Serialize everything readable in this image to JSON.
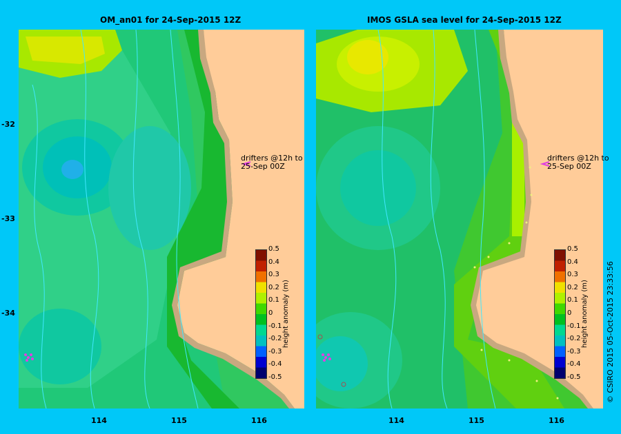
{
  "left_panel": {
    "title": "OM_an01  for 24-Sep-2015 12Z",
    "drifter_label_line1": "drifters @12h to",
    "drifter_label_line2": "25-Sep 00Z"
  },
  "right_panel": {
    "title": "IMOS GSLA sea level  for 24-Sep-2015 12Z",
    "drifter_label_line1": "drifters @12h to",
    "drifter_label_line2": "25-Sep 00Z"
  },
  "axes": {
    "y_ticks": [
      "-32",
      "-33",
      "-34"
    ],
    "x_ticks": [
      "114",
      "115",
      "116"
    ],
    "lat_range": [
      -35.0,
      -31.1
    ],
    "lon_range": [
      113.0,
      116.6
    ]
  },
  "colorbar": {
    "title": "height anomaly (m)",
    "ticks": [
      "0.5",
      "0.4",
      "0.3",
      "0.2",
      "0.1",
      "0",
      "-0.1",
      "-0.2",
      "-0.3",
      "-0.4",
      "-0.5"
    ],
    "range": [
      -0.5,
      0.5
    ],
    "colors": [
      "#00006e",
      "#0000d0",
      "#0060ff",
      "#00c0c0",
      "#00d890",
      "#00c020",
      "#40d800",
      "#b0f000",
      "#f0e000",
      "#f07000",
      "#c02000",
      "#801000"
    ]
  },
  "copyright": "© CSIRO 2015   05-Oct-2015 23:33:56",
  "colors": {
    "background": "#00c8f8",
    "land": "#ffcc99",
    "shelf": "#c8a880",
    "isobath": "#40e8ff",
    "drifter_marker": "#e040e0"
  }
}
